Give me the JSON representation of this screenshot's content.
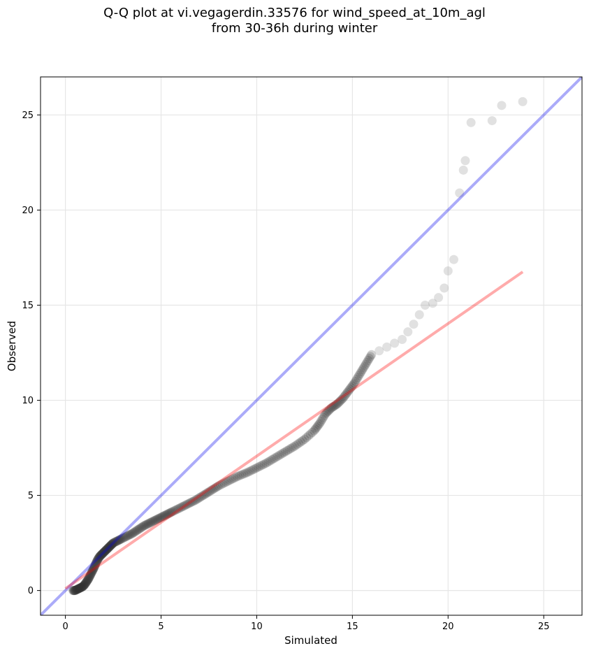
{
  "chart_data": {
    "type": "scatter",
    "title_line1": "Q-Q plot at vi.vegagerdin.33576 for wind_speed_at_10m_agl",
    "title_line2": "from 30-36h during winter",
    "xlabel": "Simulated",
    "ylabel": "Observed",
    "xlim": [
      -1.3,
      27.0
    ],
    "ylim": [
      -1.3,
      27.0
    ],
    "xticks": [
      0,
      5,
      10,
      15,
      20,
      25
    ],
    "yticks": [
      0,
      5,
      10,
      15,
      20,
      25
    ],
    "grid": true,
    "quantiles": [
      [
        0.4,
        0.0
      ],
      [
        0.5,
        0.0
      ],
      [
        0.6,
        0.05
      ],
      [
        0.7,
        0.1
      ],
      [
        0.8,
        0.15
      ],
      [
        0.9,
        0.2
      ],
      [
        1.0,
        0.3
      ],
      [
        1.1,
        0.45
      ],
      [
        1.2,
        0.6
      ],
      [
        1.3,
        0.8
      ],
      [
        1.4,
        1.0
      ],
      [
        1.5,
        1.2
      ],
      [
        1.6,
        1.45
      ],
      [
        1.7,
        1.65
      ],
      [
        1.8,
        1.8
      ],
      [
        1.9,
        1.9
      ],
      [
        2.0,
        2.0
      ],
      [
        2.1,
        2.1
      ],
      [
        2.2,
        2.2
      ],
      [
        2.3,
        2.3
      ],
      [
        2.4,
        2.4
      ],
      [
        2.5,
        2.5
      ],
      [
        2.7,
        2.6
      ],
      [
        2.9,
        2.7
      ],
      [
        3.2,
        2.85
      ],
      [
        3.5,
        3.0
      ],
      [
        3.8,
        3.2
      ],
      [
        4.1,
        3.4
      ],
      [
        4.4,
        3.55
      ],
      [
        4.7,
        3.7
      ],
      [
        5.0,
        3.85
      ],
      [
        5.3,
        4.0
      ],
      [
        5.6,
        4.15
      ],
      [
        6.0,
        4.35
      ],
      [
        6.4,
        4.55
      ],
      [
        6.8,
        4.75
      ],
      [
        7.2,
        5.0
      ],
      [
        7.6,
        5.25
      ],
      [
        8.0,
        5.5
      ],
      [
        8.5,
        5.75
      ],
      [
        9.0,
        6.0
      ],
      [
        9.5,
        6.2
      ],
      [
        10.0,
        6.45
      ],
      [
        10.5,
        6.7
      ],
      [
        11.0,
        7.0
      ],
      [
        11.5,
        7.3
      ],
      [
        12.0,
        7.6
      ],
      [
        12.5,
        7.95
      ],
      [
        13.0,
        8.4
      ],
      [
        13.3,
        8.8
      ],
      [
        13.6,
        9.3
      ],
      [
        13.9,
        9.6
      ],
      [
        14.2,
        9.8
      ],
      [
        14.5,
        10.1
      ],
      [
        14.8,
        10.5
      ],
      [
        15.1,
        10.9
      ],
      [
        15.4,
        11.4
      ],
      [
        15.7,
        11.9
      ],
      [
        16.0,
        12.4
      ],
      [
        16.4,
        12.6
      ],
      [
        16.8,
        12.8
      ],
      [
        17.2,
        13.0
      ],
      [
        17.6,
        13.2
      ],
      [
        17.9,
        13.6
      ],
      [
        18.2,
        14.0
      ],
      [
        18.5,
        14.5
      ],
      [
        18.8,
        15.0
      ],
      [
        19.2,
        15.1
      ],
      [
        19.5,
        15.4
      ],
      [
        19.8,
        15.9
      ],
      [
        20.0,
        16.8
      ],
      [
        20.3,
        17.4
      ],
      [
        20.6,
        20.9
      ],
      [
        20.8,
        22.1
      ],
      [
        20.9,
        22.6
      ],
      [
        21.2,
        24.6
      ],
      [
        22.3,
        24.7
      ],
      [
        22.8,
        25.5
      ],
      [
        23.9,
        25.7
      ]
    ],
    "reference_line": {
      "name": "y = x",
      "color": "#0000ee",
      "from": [
        -1.3,
        -1.3
      ],
      "to": [
        27.0,
        27.0
      ]
    },
    "fit_line": {
      "color": "#ff0000",
      "from": [
        0.0,
        0.1
      ],
      "to": [
        23.9,
        16.75
      ]
    },
    "marker_color": "#333333"
  }
}
